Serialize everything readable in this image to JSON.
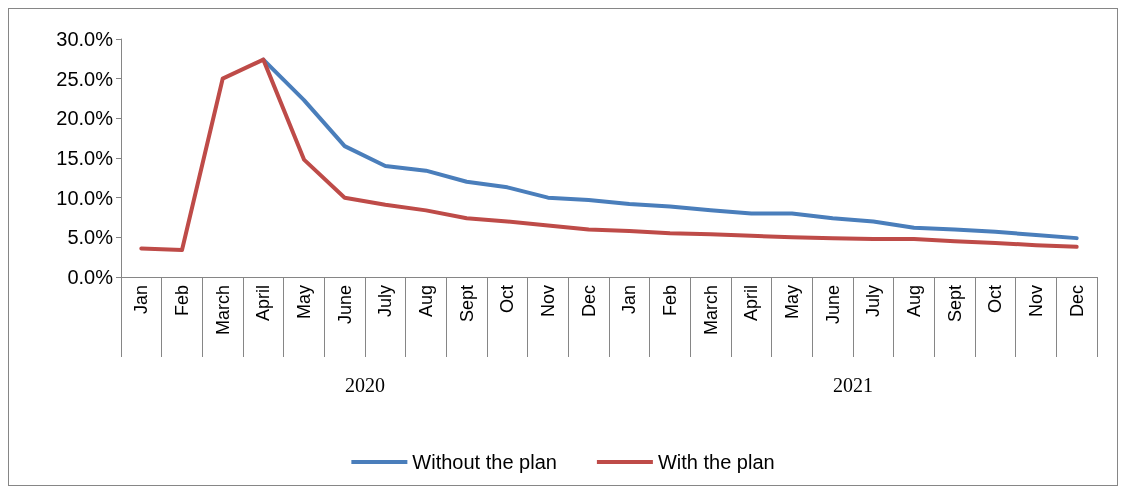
{
  "chart_data": {
    "type": "line",
    "categories": [
      "Jan",
      "Feb",
      "March",
      "April",
      "May",
      "June",
      "July",
      "Aug",
      "Sept",
      "Oct",
      "Nov",
      "Dec",
      "Jan",
      "Feb",
      "March",
      "April",
      "May",
      "June",
      "July",
      "Aug",
      "Sept",
      "Oct",
      "Nov",
      "Dec"
    ],
    "series": [
      {
        "name": "Without the plan",
        "color": "#4a7ebb",
        "values": [
          null,
          null,
          null,
          27.4,
          22.3,
          16.5,
          14.0,
          13.4,
          12.0,
          11.3,
          10.0,
          9.7,
          9.2,
          8.9,
          8.4,
          8.0,
          8.0,
          7.4,
          7.0,
          6.2,
          6.0,
          5.7,
          5.3,
          4.9
        ]
      },
      {
        "name": "With the plan",
        "color": "#be4b48",
        "values": [
          3.6,
          3.4,
          25.0,
          27.4,
          14.8,
          10.0,
          9.1,
          8.4,
          7.4,
          7.0,
          6.5,
          6.0,
          5.8,
          5.5,
          5.4,
          5.2,
          5.0,
          4.9,
          4.8,
          4.8,
          4.5,
          4.3,
          4.0,
          3.8
        ]
      }
    ],
    "annotations": [
      "2020",
      "2021"
    ],
    "ylim": [
      0,
      30
    ],
    "yticks": [
      {
        "value": 0,
        "label": "0.0%"
      },
      {
        "value": 5,
        "label": "5.0%"
      },
      {
        "value": 10,
        "label": "10.0%"
      },
      {
        "value": 15,
        "label": "15.0%"
      },
      {
        "value": 20,
        "label": "20.0%"
      },
      {
        "value": 25,
        "label": "25.0%"
      },
      {
        "value": 30,
        "label": "30.0%"
      }
    ],
    "grid": false,
    "legend": "bottom",
    "marker": "none",
    "line_style": "solid"
  }
}
